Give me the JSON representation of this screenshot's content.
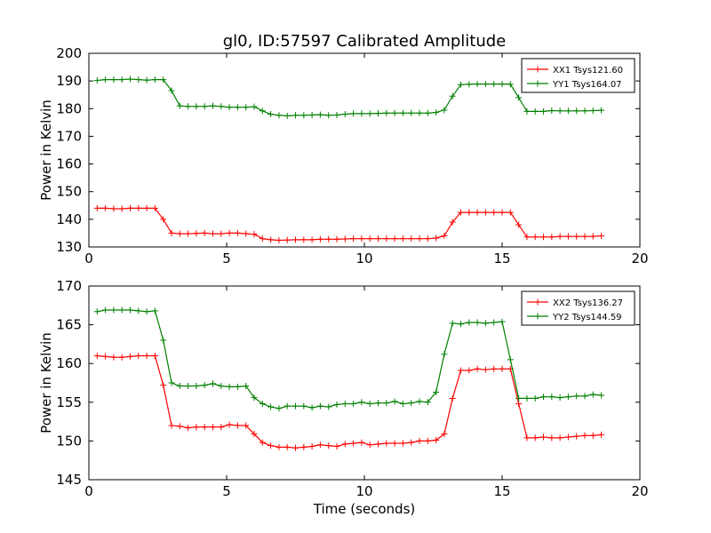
{
  "figure_title": "gl0, ID:57597 Calibrated Amplitude",
  "xlabel": "Time (seconds)",
  "chart_data": [
    {
      "type": "line",
      "ylabel": "Power in Kelvin",
      "xlim": [
        0,
        20
      ],
      "ylim": [
        130,
        200
      ],
      "xticks": [
        0,
        5,
        10,
        15,
        20
      ],
      "yticks": [
        130,
        140,
        150,
        160,
        170,
        180,
        190,
        200
      ],
      "grid": false,
      "legend_position": "top-right",
      "x": [
        0.3,
        0.6,
        0.9,
        1.2,
        1.5,
        1.8,
        2.1,
        2.4,
        2.7,
        3.0,
        3.3,
        3.6,
        3.9,
        4.2,
        4.5,
        4.8,
        5.1,
        5.4,
        5.7,
        6.0,
        6.3,
        6.6,
        6.9,
        7.2,
        7.5,
        7.8,
        8.1,
        8.4,
        8.7,
        9.0,
        9.3,
        9.6,
        9.9,
        10.2,
        10.5,
        10.8,
        11.1,
        11.4,
        11.7,
        12.0,
        12.3,
        12.6,
        12.9,
        13.2,
        13.5,
        13.8,
        14.1,
        14.4,
        14.7,
        15.0,
        15.3,
        15.6,
        15.9,
        16.2,
        16.5,
        16.8,
        17.1,
        17.4,
        17.7,
        18.0,
        18.3,
        18.6
      ],
      "series": [
        {
          "name": "XX1 Tsys121.60",
          "color": "#ff0000",
          "values": [
            144.0,
            144.0,
            143.8,
            143.8,
            144.0,
            144.0,
            144.0,
            144.0,
            140.0,
            135.0,
            134.8,
            134.8,
            134.9,
            135.0,
            134.8,
            134.8,
            135.0,
            135.0,
            134.8,
            134.6,
            133.0,
            132.6,
            132.4,
            132.5,
            132.6,
            132.6,
            132.6,
            132.8,
            132.8,
            132.8,
            132.9,
            133.0,
            133.0,
            133.0,
            133.0,
            133.0,
            133.0,
            133.0,
            133.0,
            133.0,
            133.0,
            133.2,
            134.0,
            139.0,
            142.5,
            142.5,
            142.5,
            142.5,
            142.5,
            142.5,
            142.5,
            138.0,
            133.6,
            133.6,
            133.6,
            133.6,
            133.8,
            133.8,
            133.8,
            133.8,
            133.8,
            134.0
          ]
        },
        {
          "name": "YY1 Tsys164.07",
          "color": "#008000",
          "values": [
            190.2,
            190.5,
            190.5,
            190.5,
            190.7,
            190.5,
            190.3,
            190.5,
            190.5,
            186.5,
            181.0,
            180.8,
            180.8,
            180.8,
            181.0,
            180.8,
            180.5,
            180.5,
            180.5,
            180.7,
            179.2,
            178.0,
            177.6,
            177.4,
            177.6,
            177.6,
            177.7,
            177.8,
            177.6,
            177.7,
            178.0,
            178.2,
            178.2,
            178.2,
            178.3,
            178.4,
            178.4,
            178.4,
            178.4,
            178.4,
            178.4,
            178.6,
            179.5,
            184.5,
            188.7,
            188.8,
            188.9,
            188.9,
            188.9,
            188.9,
            188.8,
            184.0,
            179.0,
            179.0,
            179.0,
            179.3,
            179.2,
            179.2,
            179.2,
            179.2,
            179.3,
            179.4
          ]
        }
      ]
    },
    {
      "type": "line",
      "ylabel": "Power in Kelvin",
      "xlabel": "Time (seconds)",
      "xlim": [
        0,
        20
      ],
      "ylim": [
        145,
        170
      ],
      "xticks": [
        0,
        5,
        10,
        15,
        20
      ],
      "yticks": [
        145,
        150,
        155,
        160,
        165,
        170
      ],
      "grid": false,
      "legend_position": "top-right",
      "x": [
        0.3,
        0.6,
        0.9,
        1.2,
        1.5,
        1.8,
        2.1,
        2.4,
        2.7,
        3.0,
        3.3,
        3.6,
        3.9,
        4.2,
        4.5,
        4.8,
        5.1,
        5.4,
        5.7,
        6.0,
        6.3,
        6.6,
        6.9,
        7.2,
        7.5,
        7.8,
        8.1,
        8.4,
        8.7,
        9.0,
        9.3,
        9.6,
        9.9,
        10.2,
        10.5,
        10.8,
        11.1,
        11.4,
        11.7,
        12.0,
        12.3,
        12.6,
        12.9,
        13.2,
        13.5,
        13.8,
        14.1,
        14.4,
        14.7,
        15.0,
        15.3,
        15.6,
        15.9,
        16.2,
        16.5,
        16.8,
        17.1,
        17.4,
        17.7,
        18.0,
        18.3,
        18.6
      ],
      "series": [
        {
          "name": "XX2 Tsys136.27",
          "color": "#ff0000",
          "values": [
            161.0,
            160.9,
            160.8,
            160.8,
            160.9,
            161.0,
            161.0,
            161.0,
            157.2,
            152.0,
            151.9,
            151.7,
            151.8,
            151.8,
            151.8,
            151.8,
            152.1,
            152.0,
            152.0,
            150.9,
            149.8,
            149.4,
            149.2,
            149.2,
            149.1,
            149.2,
            149.3,
            149.5,
            149.4,
            149.3,
            149.6,
            149.7,
            149.8,
            149.5,
            149.6,
            149.7,
            149.7,
            149.7,
            149.8,
            150.0,
            150.0,
            150.1,
            150.9,
            155.5,
            159.1,
            159.1,
            159.3,
            159.2,
            159.3,
            159.3,
            159.3,
            154.8,
            150.4,
            150.4,
            150.5,
            150.4,
            150.4,
            150.5,
            150.6,
            150.7,
            150.7,
            150.8
          ]
        },
        {
          "name": "YY2 Tsys144.59",
          "color": "#008000",
          "values": [
            166.7,
            166.9,
            166.9,
            166.9,
            166.9,
            166.8,
            166.7,
            166.8,
            163.0,
            157.5,
            157.1,
            157.1,
            157.1,
            157.2,
            157.4,
            157.1,
            157.0,
            157.0,
            157.1,
            155.6,
            154.8,
            154.4,
            154.2,
            154.5,
            154.5,
            154.5,
            154.3,
            154.5,
            154.4,
            154.7,
            154.8,
            154.8,
            155.0,
            154.8,
            154.9,
            154.9,
            155.1,
            154.8,
            154.9,
            155.1,
            155.0,
            156.3,
            161.2,
            165.2,
            165.1,
            165.3,
            165.3,
            165.2,
            165.3,
            165.4,
            160.5,
            155.5,
            155.5,
            155.5,
            155.7,
            155.7,
            155.6,
            155.7,
            155.8,
            155.8,
            156.0,
            155.9
          ]
        }
      ]
    }
  ]
}
